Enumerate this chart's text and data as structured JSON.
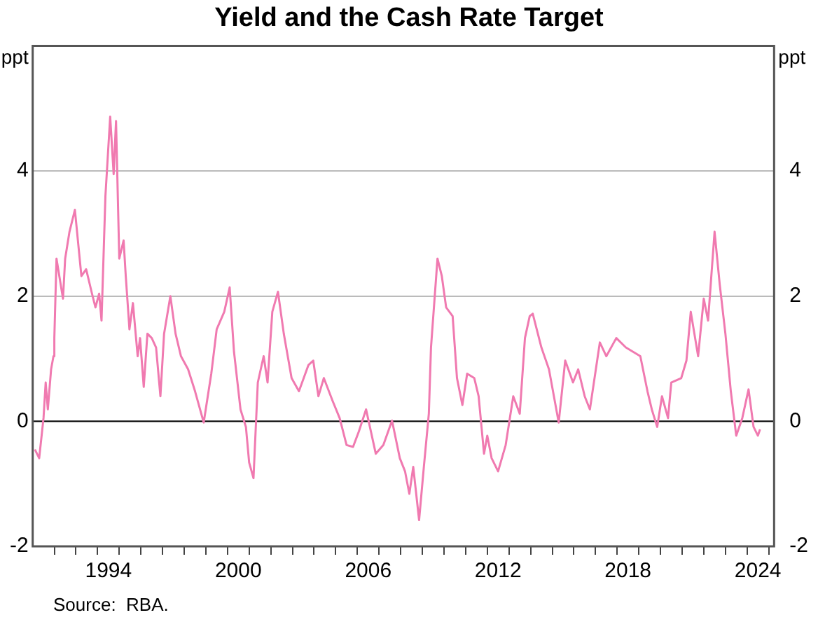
{
  "chart_data": {
    "type": "line",
    "title": "Yield and the Cash Rate Target",
    "ylabel": "ppt",
    "y2label": "ppt",
    "annotations": [
      "Source:  RBA."
    ],
    "x": [
      1991.1,
      1991.3,
      1991.5,
      1991.6,
      1991.7,
      1991.85,
      1991.96,
      1992.0,
      1992.1,
      1992.4,
      1992.5,
      1992.7,
      1992.95,
      1993.25,
      1993.47,
      1993.74,
      1993.9,
      1994.07,
      1994.18,
      1994.36,
      1994.58,
      1994.74,
      1994.85,
      1995.0,
      1995.2,
      1995.3,
      1995.47,
      1995.63,
      1995.85,
      1995.96,
      1996.13,
      1996.3,
      1996.5,
      1996.7,
      1996.9,
      1997.07,
      1997.36,
      1997.6,
      1997.85,
      1998.18,
      1998.5,
      1998.9,
      1999.25,
      1999.5,
      1999.85,
      2000.1,
      2000.3,
      2000.6,
      2000.85,
      2001.0,
      2001.2,
      2001.4,
      2001.67,
      2001.85,
      2002.07,
      2002.33,
      2002.6,
      2002.96,
      2003.3,
      2003.74,
      2003.96,
      2004.2,
      2004.45,
      2004.85,
      2005.18,
      2005.5,
      2005.8,
      2006.07,
      2006.4,
      2006.85,
      2007.2,
      2007.6,
      2007.96,
      2008.2,
      2008.4,
      2008.58,
      2008.85,
      2009.07,
      2009.3,
      2009.4,
      2009.7,
      2009.9,
      2010.1,
      2010.4,
      2010.6,
      2010.85,
      2011.07,
      2011.4,
      2011.6,
      2011.85,
      2012.0,
      2012.2,
      2012.5,
      2012.85,
      2013.2,
      2013.5,
      2013.74,
      2013.96,
      2014.1,
      2014.5,
      2014.85,
      2015.3,
      2015.6,
      2015.96,
      2016.2,
      2016.5,
      2016.74,
      2017.2,
      2017.5,
      2017.96,
      2018.4,
      2019.07,
      2019.4,
      2019.6,
      2019.85,
      2020.07,
      2020.35,
      2020.5,
      2020.96,
      2021.2,
      2021.4,
      2021.74,
      2022.0,
      2022.2,
      2022.5,
      2022.74,
      2023.0,
      2023.25,
      2023.5,
      2023.78,
      2024.07,
      2024.3,
      2024.5,
      2024.6
    ],
    "series": [
      {
        "color": "#f07ab0",
        "values": [
          -0.45,
          -0.59,
          0.05,
          0.62,
          0.19,
          0.83,
          1.04,
          1.33,
          2.6,
          1.96,
          2.6,
          3.03,
          3.38,
          2.32,
          2.43,
          2.04,
          1.82,
          2.04,
          1.61,
          3.6,
          4.87,
          3.95,
          4.8,
          2.6,
          2.89,
          2.32,
          1.47,
          1.89,
          1.04,
          1.33,
          0.55,
          1.4,
          1.33,
          1.18,
          0.4,
          1.4,
          2.0,
          1.4,
          1.04,
          0.83,
          0.48,
          -0.02,
          0.76,
          1.47,
          1.75,
          2.14,
          1.11,
          0.19,
          -0.09,
          -0.66,
          -0.91,
          0.62,
          1.04,
          0.62,
          1.75,
          2.07,
          1.4,
          0.69,
          0.48,
          0.9,
          0.97,
          0.4,
          0.69,
          0.33,
          0.05,
          -0.38,
          -0.41,
          -0.16,
          0.19,
          -0.52,
          -0.38,
          0.01,
          -0.59,
          -0.8,
          -1.16,
          -0.73,
          -1.58,
          -0.73,
          0.12,
          1.18,
          2.6,
          2.32,
          1.82,
          1.68,
          0.69,
          0.26,
          0.76,
          0.69,
          0.4,
          -0.52,
          -0.23,
          -0.59,
          -0.8,
          -0.38,
          0.4,
          0.12,
          1.33,
          1.68,
          1.72,
          1.18,
          0.83,
          -0.02,
          0.97,
          0.62,
          0.83,
          0.4,
          0.19,
          1.26,
          1.04,
          1.33,
          1.18,
          1.04,
          0.48,
          0.19,
          -0.09,
          0.4,
          0.05,
          0.62,
          0.69,
          0.97,
          1.75,
          1.04,
          1.96,
          1.61,
          3.03,
          2.18,
          1.4,
          0.48,
          -0.23,
          0.05,
          0.51,
          -0.09,
          -0.23,
          -0.13
        ]
      }
    ],
    "xlim": [
      1991,
      2025.25
    ],
    "xticks": [
      {
        "value": 1992,
        "label": null
      },
      {
        "value": 1993,
        "label": null
      },
      {
        "value": 1994,
        "label": null
      },
      {
        "value": 1994.5,
        "label": "1994"
      },
      {
        "value": 1995,
        "label": null
      },
      {
        "value": 1996,
        "label": null
      },
      {
        "value": 1997,
        "label": null
      },
      {
        "value": 1998,
        "label": null
      },
      {
        "value": 1999,
        "label": null
      },
      {
        "value": 2000,
        "label": null
      },
      {
        "value": 2000.5,
        "label": "2000"
      },
      {
        "value": 2001,
        "label": null
      },
      {
        "value": 2002,
        "label": null
      },
      {
        "value": 2003,
        "label": null
      },
      {
        "value": 2004,
        "label": null
      },
      {
        "value": 2005,
        "label": null
      },
      {
        "value": 2006,
        "label": null
      },
      {
        "value": 2006.5,
        "label": "2006"
      },
      {
        "value": 2007,
        "label": null
      },
      {
        "value": 2008,
        "label": null
      },
      {
        "value": 2009,
        "label": null
      },
      {
        "value": 2010,
        "label": null
      },
      {
        "value": 2011,
        "label": null
      },
      {
        "value": 2012,
        "label": null
      },
      {
        "value": 2012.5,
        "label": "2012"
      },
      {
        "value": 2013,
        "label": null
      },
      {
        "value": 2014,
        "label": null
      },
      {
        "value": 2015,
        "label": null
      },
      {
        "value": 2016,
        "label": null
      },
      {
        "value": 2017,
        "label": null
      },
      {
        "value": 2018,
        "label": null
      },
      {
        "value": 2018.5,
        "label": "2018"
      },
      {
        "value": 2019,
        "label": null
      },
      {
        "value": 2020,
        "label": null
      },
      {
        "value": 2021,
        "label": null
      },
      {
        "value": 2022,
        "label": null
      },
      {
        "value": 2023,
        "label": null
      },
      {
        "value": 2024,
        "label": null
      },
      {
        "value": 2024.5,
        "label": "2024"
      },
      {
        "value": 2025,
        "label": null
      }
    ],
    "ylim": [
      -2,
      6
    ],
    "yticks": [
      -2,
      0,
      2,
      4
    ],
    "y2lim": [
      -2,
      6
    ],
    "y2ticks": [
      -2,
      0,
      2,
      4
    ],
    "ref_lines": [
      {
        "axis": "y",
        "value": 0,
        "color": "#000000"
      }
    ],
    "grid": "y",
    "legend": false,
    "marker": "none",
    "line_style": "solid"
  }
}
